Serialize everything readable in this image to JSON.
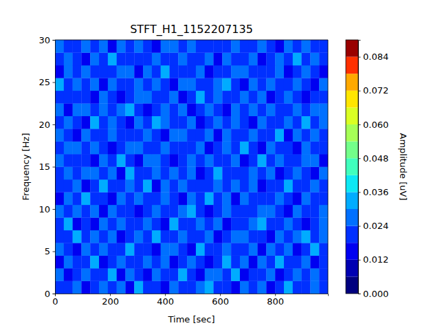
{
  "chart_data": {
    "type": "heatmap",
    "title": "STFT_H1_1152207135",
    "x_label": "Time [sec]",
    "y_label": "Frequency [Hz]",
    "xlim": [
      0,
      992
    ],
    "xticks": [
      0,
      200,
      400,
      600,
      800
    ],
    "ylim": [
      0,
      30
    ],
    "yticks": [
      0,
      5,
      10,
      15,
      20,
      25,
      30
    ],
    "x_edges": [
      0,
      32,
      64,
      96,
      128,
      160,
      192,
      224,
      256,
      288,
      320,
      352,
      384,
      416,
      448,
      480,
      512,
      544,
      576,
      608,
      640,
      672,
      704,
      736,
      768,
      800,
      832,
      864,
      896,
      928,
      960,
      992
    ],
    "y_edges": [
      0,
      1.5,
      3,
      4.5,
      6,
      7.5,
      9,
      10.5,
      12,
      13.5,
      15,
      16.5,
      18,
      19.5,
      21,
      22.5,
      24,
      25.5,
      27,
      28.5,
      30
    ],
    "z": [
      [
        0.021,
        0.018,
        0.026,
        0.015,
        0.022,
        0.029,
        0.019,
        0.024,
        0.017,
        0.031,
        0.02,
        0.023,
        0.016,
        0.027,
        0.021,
        0.019,
        0.025,
        0.032,
        0.018,
        0.022,
        0.014,
        0.026,
        0.02,
        0.028,
        0.017,
        0.023,
        0.03,
        0.019,
        0.021,
        0.025,
        0.018
      ],
      [
        0.024,
        0.016,
        0.02,
        0.028,
        0.019,
        0.022,
        0.033,
        0.017,
        0.025,
        0.021,
        0.014,
        0.027,
        0.023,
        0.018,
        0.03,
        0.022,
        0.016,
        0.024,
        0.026,
        0.019,
        0.031,
        0.017,
        0.023,
        0.02,
        0.027,
        0.015,
        0.022,
        0.029,
        0.018,
        0.024,
        0.021
      ],
      [
        0.017,
        0.027,
        0.022,
        0.019,
        0.035,
        0.016,
        0.023,
        0.026,
        0.02,
        0.018,
        0.029,
        0.021,
        0.025,
        0.015,
        0.022,
        0.028,
        0.019,
        0.017,
        0.023,
        0.03,
        0.02,
        0.024,
        0.016,
        0.026,
        0.021,
        0.032,
        0.018,
        0.023,
        0.027,
        0.016,
        0.022
      ],
      [
        0.026,
        0.02,
        0.015,
        0.024,
        0.021,
        0.027,
        0.018,
        0.022,
        0.034,
        0.019,
        0.023,
        0.017,
        0.028,
        0.024,
        0.019,
        0.016,
        0.031,
        0.022,
        0.02,
        0.025,
        0.018,
        0.021,
        0.029,
        0.017,
        0.024,
        0.02,
        0.026,
        0.015,
        0.022,
        0.03,
        0.019
      ],
      [
        0.019,
        0.023,
        0.03,
        0.018,
        0.025,
        0.02,
        0.024,
        0.016,
        0.022,
        0.027,
        0.019,
        0.033,
        0.02,
        0.022,
        0.026,
        0.023,
        0.018,
        0.027,
        0.015,
        0.021,
        0.024,
        0.028,
        0.019,
        0.022,
        0.016,
        0.026,
        0.021,
        0.024,
        0.031,
        0.02,
        0.025
      ],
      [
        0.022,
        0.031,
        0.017,
        0.023,
        0.016,
        0.024,
        0.021,
        0.029,
        0.018,
        0.022,
        0.025,
        0.02,
        0.017,
        0.03,
        0.021,
        0.019,
        0.024,
        0.02,
        0.028,
        0.016,
        0.023,
        0.019,
        0.025,
        0.033,
        0.02,
        0.018,
        0.024,
        0.021,
        0.017,
        0.023,
        0.028
      ],
      [
        0.028,
        0.019,
        0.024,
        0.021,
        0.027,
        0.017,
        0.026,
        0.02,
        0.023,
        0.016,
        0.021,
        0.026,
        0.022,
        0.019,
        0.024,
        0.031,
        0.021,
        0.016,
        0.023,
        0.027,
        0.019,
        0.022,
        0.018,
        0.024,
        0.029,
        0.021,
        0.017,
        0.025,
        0.02,
        0.019,
        0.024
      ],
      [
        0.016,
        0.025,
        0.021,
        0.03,
        0.019,
        0.023,
        0.015,
        0.027,
        0.021,
        0.024,
        0.018,
        0.022,
        0.029,
        0.02,
        0.017,
        0.025,
        0.022,
        0.03,
        0.019,
        0.024,
        0.016,
        0.027,
        0.021,
        0.019,
        0.023,
        0.028,
        0.02,
        0.016,
        0.026,
        0.022,
        0.018
      ],
      [
        0.023,
        0.02,
        0.027,
        0.017,
        0.022,
        0.032,
        0.02,
        0.018,
        0.026,
        0.021,
        0.03,
        0.016,
        0.024,
        0.022,
        0.028,
        0.018,
        0.02,
        0.023,
        0.025,
        0.018,
        0.029,
        0.021,
        0.024,
        0.017,
        0.022,
        0.019,
        0.031,
        0.023,
        0.018,
        0.027,
        0.021
      ],
      [
        0.02,
        0.026,
        0.018,
        0.024,
        0.029,
        0.021,
        0.025,
        0.017,
        0.03,
        0.023,
        0.019,
        0.024,
        0.018,
        0.026,
        0.02,
        0.024,
        0.017,
        0.021,
        0.031,
        0.023,
        0.02,
        0.018,
        0.026,
        0.022,
        0.025,
        0.017,
        0.023,
        0.028,
        0.02,
        0.016,
        0.026
      ],
      [
        0.025,
        0.018,
        0.022,
        0.02,
        0.017,
        0.026,
        0.022,
        0.031,
        0.019,
        0.017,
        0.024,
        0.028,
        0.021,
        0.016,
        0.023,
        0.027,
        0.019,
        0.024,
        0.018,
        0.022,
        0.026,
        0.016,
        0.02,
        0.03,
        0.018,
        0.024,
        0.019,
        0.022,
        0.025,
        0.029,
        0.017
      ],
      [
        0.018,
        0.024,
        0.029,
        0.022,
        0.024,
        0.019,
        0.016,
        0.023,
        0.025,
        0.028,
        0.02,
        0.019,
        0.026,
        0.023,
        0.018,
        0.021,
        0.029,
        0.016,
        0.022,
        0.025,
        0.021,
        0.03,
        0.023,
        0.017,
        0.026,
        0.02,
        0.022,
        0.017,
        0.024,
        0.021,
        0.023
      ],
      [
        0.027,
        0.021,
        0.016,
        0.026,
        0.02,
        0.023,
        0.028,
        0.019,
        0.022,
        0.018,
        0.027,
        0.021,
        0.015,
        0.024,
        0.029,
        0.02,
        0.023,
        0.025,
        0.017,
        0.029,
        0.018,
        0.023,
        0.027,
        0.021,
        0.019,
        0.031,
        0.016,
        0.024,
        0.019,
        0.026,
        0.02
      ],
      [
        0.019,
        0.028,
        0.023,
        0.017,
        0.031,
        0.018,
        0.024,
        0.021,
        0.016,
        0.025,
        0.022,
        0.03,
        0.024,
        0.019,
        0.021,
        0.026,
        0.016,
        0.022,
        0.027,
        0.02,
        0.024,
        0.019,
        0.016,
        0.025,
        0.022,
        0.018,
        0.027,
        0.02,
        0.03,
        0.018,
        0.024
      ],
      [
        0.024,
        0.017,
        0.025,
        0.029,
        0.021,
        0.026,
        0.019,
        0.024,
        0.03,
        0.02,
        0.016,
        0.023,
        0.027,
        0.021,
        0.025,
        0.017,
        0.022,
        0.028,
        0.02,
        0.016,
        0.027,
        0.022,
        0.029,
        0.018,
        0.024,
        0.021,
        0.019,
        0.026,
        0.022,
        0.024,
        0.028
      ],
      [
        0.021,
        0.023,
        0.019,
        0.02,
        0.016,
        0.029,
        0.022,
        0.017,
        0.023,
        0.027,
        0.024,
        0.018,
        0.02,
        0.028,
        0.016,
        0.023,
        0.03,
        0.019,
        0.024,
        0.022,
        0.018,
        0.025,
        0.021,
        0.027,
        0.016,
        0.023,
        0.028,
        0.021,
        0.017,
        0.022,
        0.019
      ],
      [
        0.03,
        0.019,
        0.026,
        0.023,
        0.025,
        0.017,
        0.027,
        0.022,
        0.018,
        0.024,
        0.021,
        0.026,
        0.019,
        0.017,
        0.027,
        0.024,
        0.018,
        0.021,
        0.026,
        0.031,
        0.02,
        0.017,
        0.024,
        0.02,
        0.028,
        0.019,
        0.022,
        0.025,
        0.023,
        0.017,
        0.027
      ],
      [
        0.017,
        0.024,
        0.021,
        0.028,
        0.019,
        0.022,
        0.02,
        0.029,
        0.025,
        0.016,
        0.026,
        0.02,
        0.032,
        0.023,
        0.019,
        0.022,
        0.026,
        0.017,
        0.023,
        0.019,
        0.025,
        0.028,
        0.018,
        0.023,
        0.021,
        0.027,
        0.017,
        0.02,
        0.026,
        0.021,
        0.016
      ],
      [
        0.022,
        0.027,
        0.018,
        0.016,
        0.024,
        0.021,
        0.031,
        0.018,
        0.021,
        0.023,
        0.019,
        0.025,
        0.022,
        0.02,
        0.024,
        0.018,
        0.021,
        0.029,
        0.016,
        0.024,
        0.022,
        0.02,
        0.027,
        0.016,
        0.023,
        0.025,
        0.021,
        0.03,
        0.018,
        0.025,
        0.022
      ],
      [
        0.025,
        0.02,
        0.023,
        0.027,
        0.018,
        0.024,
        0.017,
        0.026,
        0.02,
        0.029,
        0.022,
        0.017,
        0.024,
        0.027,
        0.02,
        0.029,
        0.019,
        0.023,
        0.021,
        0.018,
        0.026,
        0.023,
        0.019,
        0.025,
        0.02,
        0.017,
        0.024,
        0.022,
        0.027,
        0.02,
        0.023
      ]
    ],
    "colorbar": {
      "label": "Amplitude [uV]",
      "range": [
        0,
        0.09
      ],
      "ticks": [
        {
          "value": 0,
          "label": "0.000"
        },
        0.012,
        0.024,
        0.036,
        0.048,
        {
          "value": 0.06,
          "label": "0.060"
        },
        0.072,
        0.084
      ],
      "levels": [
        0,
        0.006,
        0.012,
        0.018,
        0.024,
        0.03,
        0.036,
        0.042,
        0.048,
        0.054,
        0.06,
        0.066,
        0.072,
        0.078,
        0.084,
        0.09
      ],
      "colors": [
        "#00007f",
        "#0000b2",
        "#0000f1",
        "#0030ff",
        "#0070ff",
        "#00acff",
        "#0ce8f4",
        "#40ffbd",
        "#73ff8a",
        "#a6ff56",
        "#daff23",
        "#ffe600",
        "#ffa900",
        "#ff3000",
        "#990000"
      ]
    }
  }
}
